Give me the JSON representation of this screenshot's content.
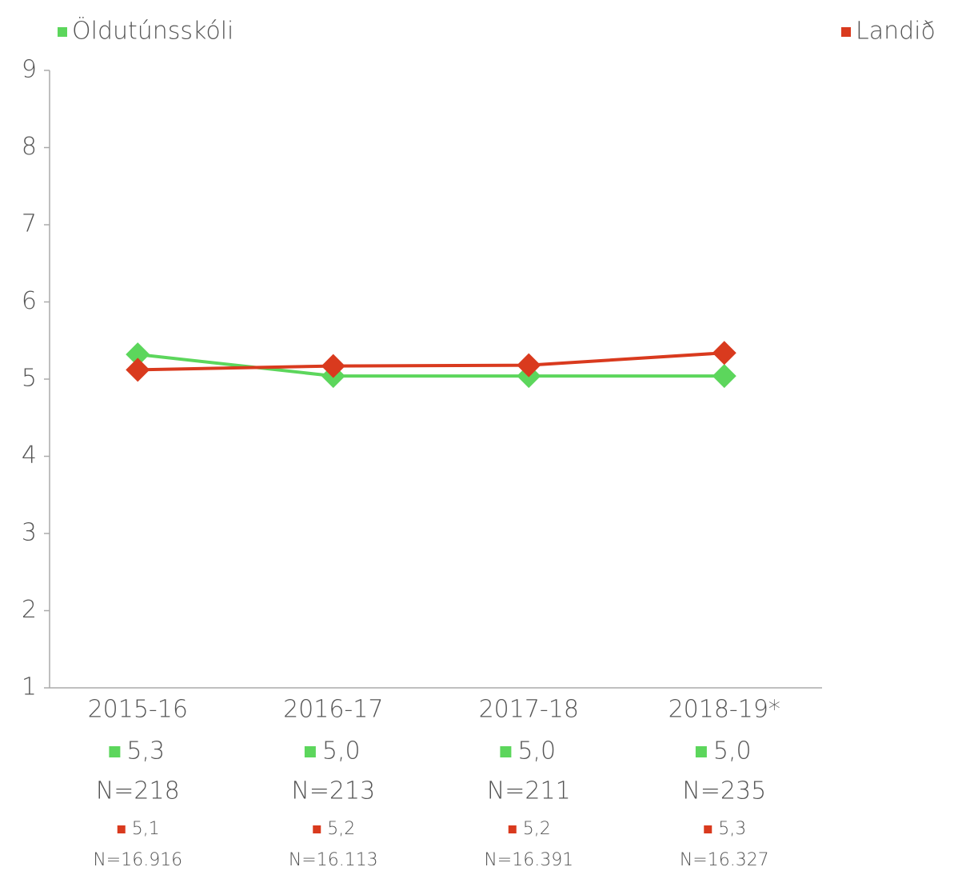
{
  "chart_data": {
    "type": "line",
    "categories": [
      "2015-16",
      "2016-17",
      "2017-18",
      "2018-19*"
    ],
    "series": [
      {
        "name": "Öldutúnsskóli",
        "color": "#5cd65c",
        "values": [
          5.32,
          5.04,
          5.04,
          5.04
        ],
        "value_labels": [
          "5,3",
          "5,0",
          "5,0",
          "5,0"
        ],
        "n_labels": [
          "N=218",
          "N=213",
          "N=211",
          "N=235"
        ]
      },
      {
        "name": "Landið",
        "color": "#d93a1e",
        "values": [
          5.12,
          5.17,
          5.18,
          5.34
        ],
        "value_labels": [
          "5,1",
          "5,2",
          "5,2",
          "5,3"
        ],
        "n_labels": [
          "N=16.916",
          "N=16.113",
          "N=16.391",
          "N=16.327"
        ]
      }
    ],
    "ylim": [
      1,
      9
    ],
    "yticks": [
      1,
      2,
      3,
      4,
      5,
      6,
      7,
      8,
      9
    ]
  }
}
